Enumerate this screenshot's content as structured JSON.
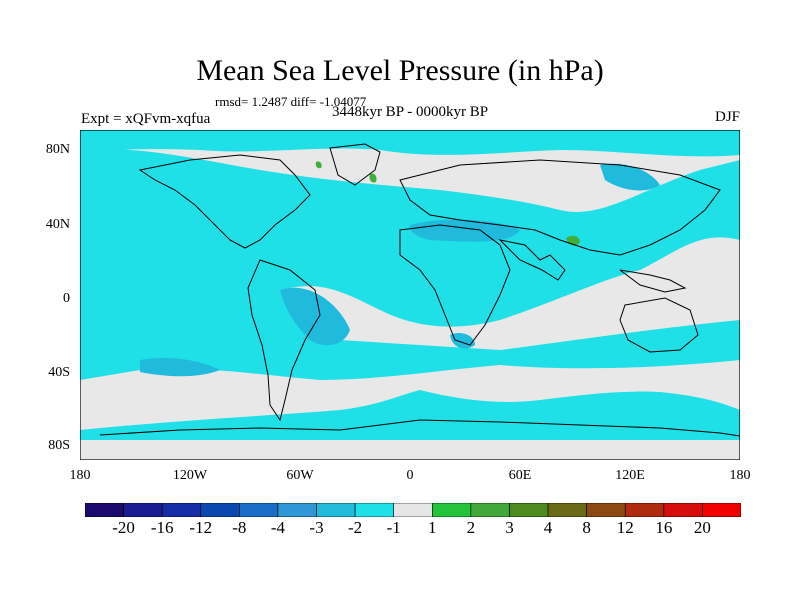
{
  "title": "Mean Sea Level Pressure (in hPa)",
  "stats": "rmsd= 1.2487 diff= -1.04077",
  "subtitle": "3448kyr BP - 0000kyr BP",
  "experiment": "Expt = xQFvm-xqfua",
  "season": "DJF",
  "lat_ticks": [
    "80N",
    "40N",
    "0",
    "40S",
    "80S"
  ],
  "lon_ticks": [
    "180",
    "120W",
    "60W",
    "0",
    "60E",
    "120E",
    "180"
  ],
  "colorbar": {
    "labels": [
      "-20",
      "-16",
      "-12",
      "-8",
      "-4",
      "-3",
      "-2",
      "-1",
      "1",
      "2",
      "3",
      "4",
      "8",
      "12",
      "16",
      "20"
    ],
    "colors": [
      "#1c0a6e",
      "#1a1c92",
      "#142ca6",
      "#0a48b0",
      "#1b6ec8",
      "#2f96d8",
      "#1fbadc",
      "#1fe0e6",
      "#e6e6e6",
      "#23c43a",
      "#43a83a",
      "#4e8a1e",
      "#6a6a16",
      "#8c4a12",
      "#b02a0e",
      "#d40c0c",
      "#f00000"
    ]
  },
  "map_colors": {
    "ocean_bg": "#e8e8e8",
    "neg1": "#1fe0e6",
    "neg2": "#1fbadc",
    "pos": "#3fae3a",
    "coast": "#000000"
  }
}
